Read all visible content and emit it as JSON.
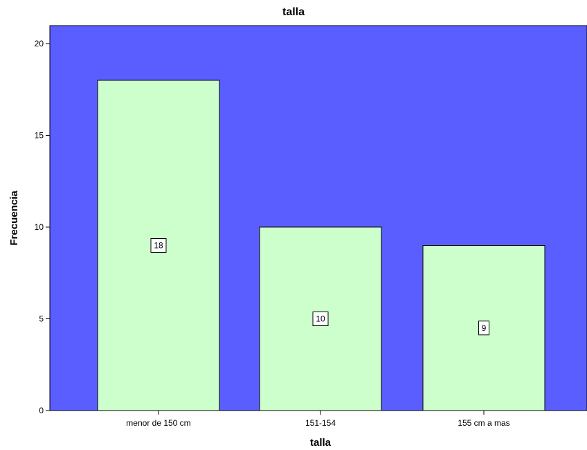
{
  "chart_data": {
    "type": "bar",
    "title": "talla",
    "xlabel": "talla",
    "ylabel": "Frecuencia",
    "categories": [
      "menor de 150 cm",
      "151-154",
      "155 cm a mas"
    ],
    "values": [
      18,
      10,
      9
    ],
    "data_labels": [
      "18",
      "10",
      "9"
    ],
    "ylim": [
      0,
      21
    ],
    "yticks": [
      0,
      5,
      10,
      15,
      20
    ],
    "ytick_labels": [
      "0",
      "5",
      "10",
      "15",
      "20"
    ],
    "grid": false,
    "legend": "none",
    "colors": {
      "plot_background": "#5b5eff",
      "bar_fill": "#ccffcc",
      "bar_stroke": "#000000",
      "label_box_fill": "#ffffff"
    }
  }
}
